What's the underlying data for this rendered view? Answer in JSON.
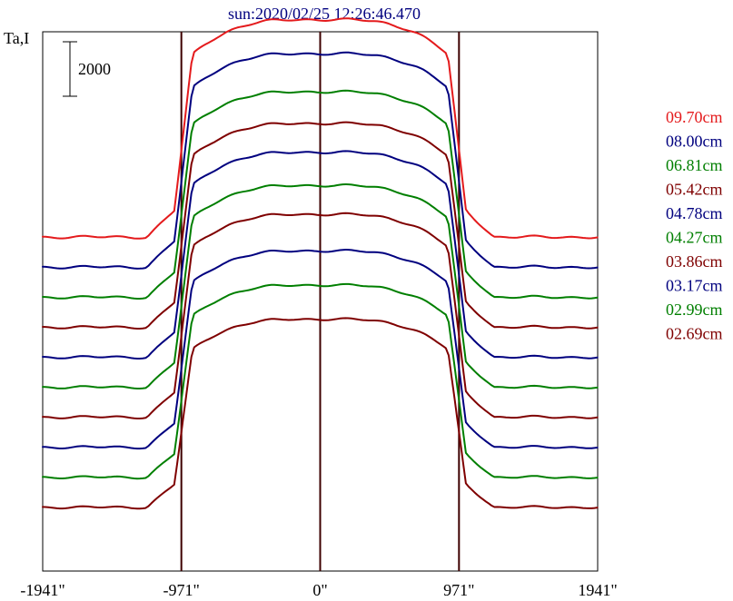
{
  "chart_data": {
    "type": "line",
    "title": "sun:2020/02/25 12:26:46.470",
    "ylabel": "Ta,I",
    "scale_bar": {
      "label": "2000",
      "value": 2000
    },
    "x_ticks": [
      {
        "value": -1941,
        "label": "-1941\""
      },
      {
        "value": -971,
        "label": "-971\""
      },
      {
        "value": 0,
        "label": "0\""
      },
      {
        "value": 971,
        "label": "971\""
      },
      {
        "value": 1941,
        "label": "1941\""
      }
    ],
    "xlim": [
      -1941,
      1941
    ],
    "vertical_lines": [
      -971,
      0,
      971
    ],
    "grid": false,
    "legend_placement": "right",
    "colors": {
      "red": "#e41a1c",
      "blue": "#00007f",
      "green": "#007f00",
      "brown": "#7f0000",
      "axes": "#000000",
      "marker": "#3d0000"
    },
    "series": [
      {
        "name": "09.70cm",
        "color_key": "red",
        "baseline": 1100,
        "height": 8150
      },
      {
        "name": "08.00cm",
        "color_key": "blue",
        "baseline": 0,
        "height": 8000
      },
      {
        "name": "06.81cm",
        "color_key": "green",
        "baseline": -1100,
        "height": 7700
      },
      {
        "name": "05.42cm",
        "color_key": "brown",
        "baseline": -2200,
        "height": 7640
      },
      {
        "name": "04.78cm",
        "color_key": "blue",
        "baseline": -3300,
        "height": 7680
      },
      {
        "name": "04.27cm",
        "color_key": "green",
        "baseline": -4400,
        "height": 7560
      },
      {
        "name": "03.86cm",
        "color_key": "brown",
        "baseline": -5500,
        "height": 7600
      },
      {
        "name": "03.17cm",
        "color_key": "blue",
        "baseline": -6600,
        "height": 7360
      },
      {
        "name": "02.99cm",
        "color_key": "green",
        "baseline": -7700,
        "height": 7200
      },
      {
        "name": "02.69cm",
        "color_key": "brown",
        "baseline": -8800,
        "height": 7050
      }
    ]
  }
}
